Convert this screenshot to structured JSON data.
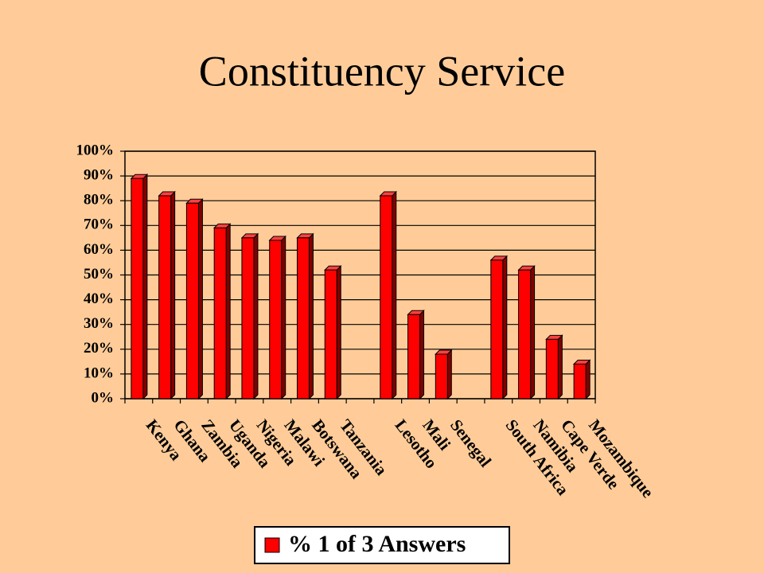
{
  "chart_data": {
    "type": "bar",
    "title": "Constituency Service",
    "categories": [
      "Kenya",
      "Ghana",
      "Zambia",
      "Uganda",
      "Nigeria",
      "Malawi",
      "Botswana",
      "Tanzania",
      null,
      "Lesotho",
      "Mali",
      "Senegal",
      null,
      "South Africa",
      "Namibia",
      "Cape Verde",
      "Mozambique"
    ],
    "series": [
      {
        "name": "% 1 of 3 Answers",
        "color": "#ff0000",
        "values": [
          89,
          82,
          79,
          69,
          65,
          64,
          65,
          52,
          null,
          82,
          34,
          18,
          null,
          56,
          52,
          24,
          14
        ]
      }
    ],
    "ylim": [
      0,
      100
    ],
    "yticks": [
      {
        "value": 0,
        "label": "0%"
      },
      {
        "value": 10,
        "label": "10%"
      },
      {
        "value": 20,
        "label": "20%"
      },
      {
        "value": 30,
        "label": "30%"
      },
      {
        "value": 40,
        "label": "40%"
      },
      {
        "value": 50,
        "label": "50%"
      },
      {
        "value": 60,
        "label": "60%"
      },
      {
        "value": 70,
        "label": "70%"
      },
      {
        "value": 80,
        "label": "80%"
      },
      {
        "value": 90,
        "label": "90%"
      },
      {
        "value": 100,
        "label": "100%"
      }
    ],
    "grid": true,
    "legend": "bottom"
  }
}
